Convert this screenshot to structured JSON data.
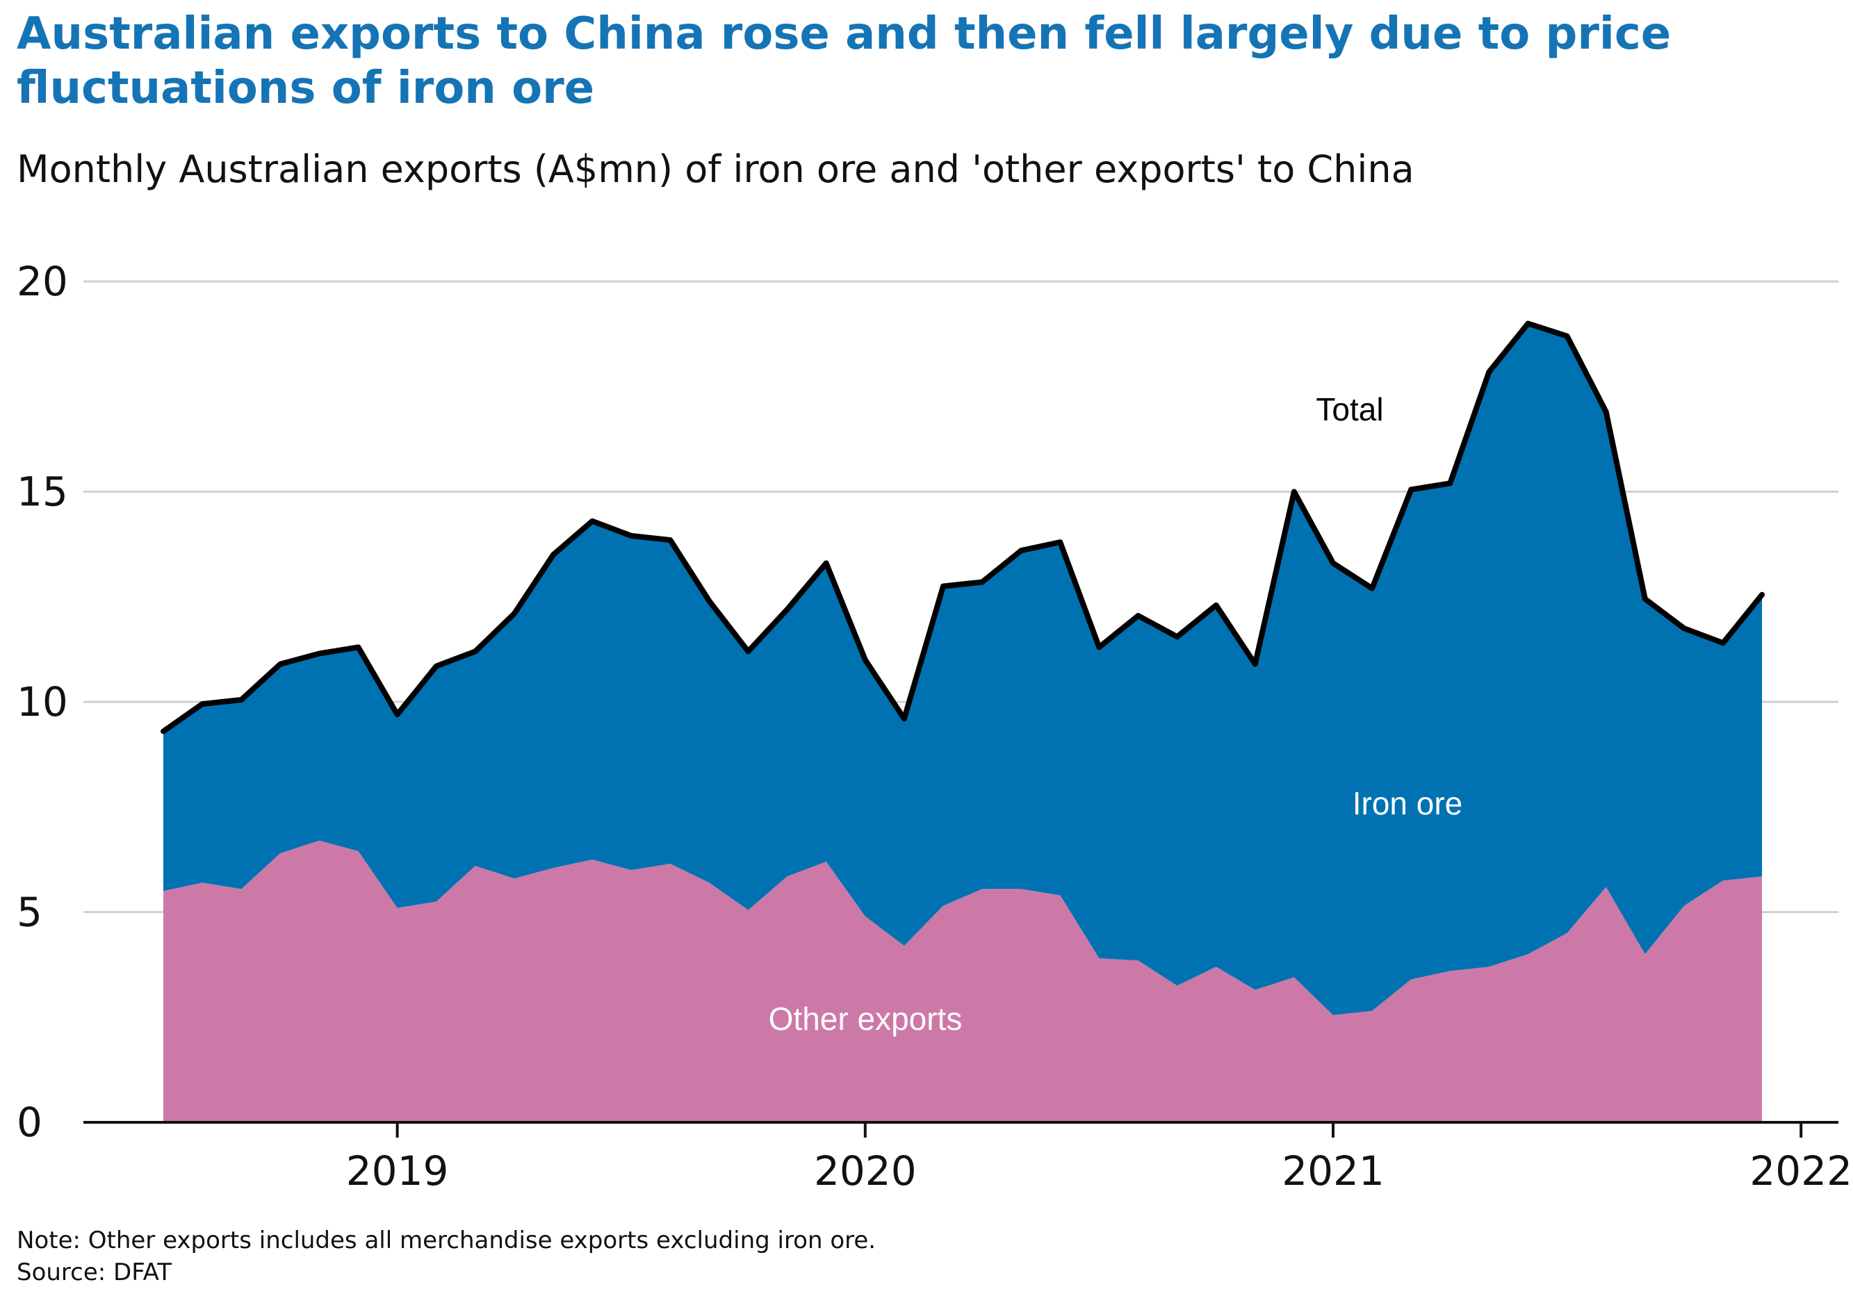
{
  "title": "Australian exports to China rose and then fell largely due to price fluctuations of iron ore",
  "subtitle": "Monthly Australian exports (A$mn) of iron ore and 'other exports' to China",
  "note": "Note: Other exports includes all merchandise exports excluding iron ore.",
  "source": "Source: DFAT",
  "colors": {
    "other": "#cc79a7",
    "iron": "#0072b2",
    "total": "#000000",
    "grid": "#d0d0d0"
  },
  "chart_data": {
    "type": "area",
    "stacked": true,
    "x_start": "2018-07",
    "x": [
      "2018-07",
      "2018-08",
      "2018-09",
      "2018-10",
      "2018-11",
      "2018-12",
      "2019-01",
      "2019-02",
      "2019-03",
      "2019-04",
      "2019-05",
      "2019-06",
      "2019-07",
      "2019-08",
      "2019-09",
      "2019-10",
      "2019-11",
      "2019-12",
      "2020-01",
      "2020-02",
      "2020-03",
      "2020-04",
      "2020-05",
      "2020-06",
      "2020-07",
      "2020-08",
      "2020-09",
      "2020-10",
      "2020-11",
      "2020-12",
      "2021-01",
      "2021-02",
      "2021-03",
      "2021-04",
      "2021-05",
      "2021-06",
      "2021-07",
      "2021-08",
      "2021-09",
      "2021-10",
      "2021-11",
      "2021-12"
    ],
    "xticks": [
      "2019",
      "2020",
      "2021",
      "2022"
    ],
    "ylim": [
      0,
      20
    ],
    "yticks": [
      0,
      5,
      10,
      15,
      20
    ],
    "grid": true,
    "series": [
      {
        "name": "Other exports",
        "values": [
          5.5,
          5.7,
          5.55,
          6.4,
          6.7,
          6.45,
          5.1,
          5.25,
          6.1,
          5.8,
          6.05,
          6.25,
          6.0,
          6.15,
          5.7,
          5.05,
          5.85,
          6.2,
          4.9,
          4.2,
          5.15,
          5.55,
          5.55,
          5.4,
          3.9,
          3.85,
          3.25,
          3.7,
          3.15,
          3.45,
          2.55,
          2.65,
          3.4,
          3.6,
          3.7,
          4.0,
          4.5,
          5.6,
          4.0,
          5.15,
          5.75,
          5.85
        ]
      },
      {
        "name": "Iron ore",
        "values": [
          3.8,
          4.25,
          4.5,
          4.5,
          4.45,
          4.85,
          4.6,
          5.6,
          5.1,
          6.3,
          7.45,
          8.05,
          7.95,
          7.7,
          6.7,
          6.15,
          6.35,
          7.1,
          6.1,
          5.4,
          7.6,
          7.3,
          8.05,
          8.4,
          7.4,
          8.2,
          8.3,
          8.6,
          7.75,
          11.55,
          10.75,
          10.05,
          11.65,
          11.6,
          14.15,
          15.0,
          14.2,
          11.3,
          8.45,
          6.6,
          5.65,
          6.7
        ]
      }
    ],
    "total_label": "Total",
    "annotations": [
      "Total",
      "Iron ore",
      "Other exports"
    ]
  }
}
